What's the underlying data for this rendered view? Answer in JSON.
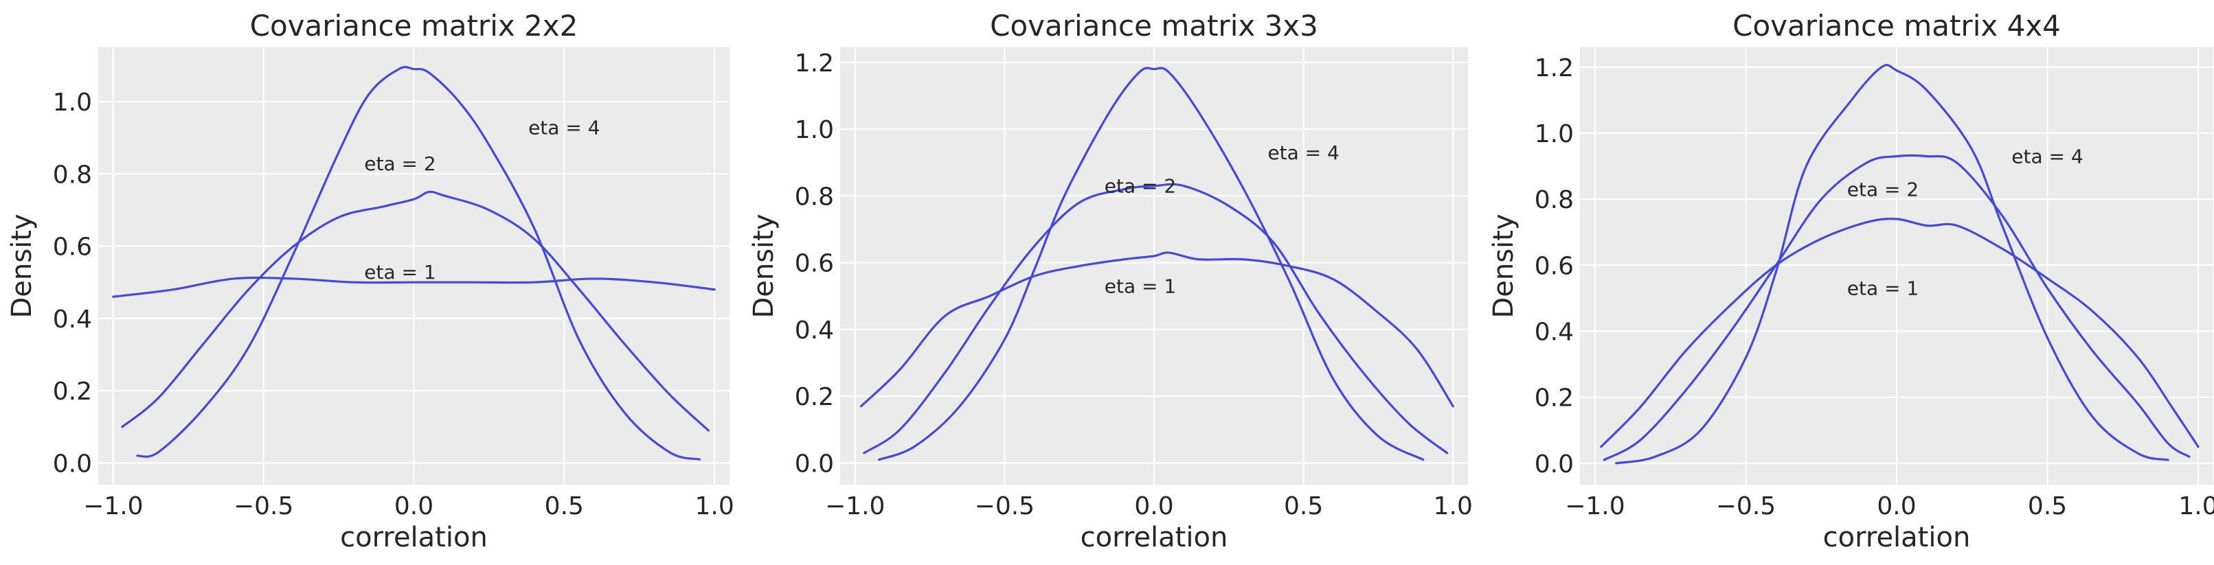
{
  "figure": {
    "line_color": "#4348e0",
    "plot_background": "#ebebeb",
    "grid_color": "#ffffff"
  },
  "chart_data": [
    {
      "type": "line",
      "title": "Covariance matrix 2x2",
      "xlabel": "correlation",
      "ylabel": "Density",
      "xlim": [
        -1.05,
        1.05
      ],
      "ylim": [
        -0.06,
        1.15
      ],
      "xticks": [
        -1.0,
        -0.5,
        0.0,
        0.5,
        1.0
      ],
      "xtick_labels": [
        "−1.0",
        "−0.5",
        "0.0",
        "0.5",
        "1.0"
      ],
      "yticks": [
        0.0,
        0.2,
        0.4,
        0.6,
        0.8,
        1.0
      ],
      "ytick_labels": [
        "0.0",
        "0.2",
        "0.4",
        "0.6",
        "0.8",
        "1.0"
      ],
      "grid": true,
      "annotations": [
        {
          "text": "eta = 4",
          "x": 0.5,
          "y": 0.91
        },
        {
          "text": "eta = 2",
          "x": 0.0,
          "y": 0.81
        },
        {
          "text": "eta = 1",
          "x": 0.0,
          "y": 0.51
        }
      ],
      "series": [
        {
          "x": [
            -1.0,
            -0.8,
            -0.6,
            -0.4,
            -0.2,
            0.0,
            0.2,
            0.4,
            0.6,
            0.8,
            1.0
          ],
          "y": [
            0.46,
            0.48,
            0.51,
            0.51,
            0.5,
            0.5,
            0.5,
            0.5,
            0.51,
            0.5,
            0.48
          ]
        },
        {
          "x": [
            -0.97,
            -0.85,
            -0.7,
            -0.55,
            -0.4,
            -0.25,
            -0.1,
            0.0,
            0.05,
            0.1,
            0.25,
            0.4,
            0.55,
            0.7,
            0.85,
            0.98
          ],
          "y": [
            0.1,
            0.18,
            0.33,
            0.48,
            0.6,
            0.68,
            0.71,
            0.73,
            0.75,
            0.74,
            0.7,
            0.62,
            0.48,
            0.33,
            0.19,
            0.09
          ]
        },
        {
          "x": [
            -0.92,
            -0.85,
            -0.7,
            -0.55,
            -0.4,
            -0.25,
            -0.15,
            -0.05,
            0.0,
            0.05,
            0.15,
            0.25,
            0.4,
            0.55,
            0.7,
            0.85,
            0.95
          ],
          "y": [
            0.02,
            0.03,
            0.15,
            0.32,
            0.58,
            0.86,
            1.02,
            1.09,
            1.09,
            1.08,
            1.0,
            0.88,
            0.65,
            0.34,
            0.14,
            0.03,
            0.01
          ]
        }
      ]
    },
    {
      "type": "line",
      "title": "Covariance matrix 3x3",
      "xlabel": "correlation",
      "ylabel": "Density",
      "xlim": [
        -1.05,
        1.05
      ],
      "ylim": [
        -0.065,
        1.245
      ],
      "xticks": [
        -1.0,
        -0.5,
        0.0,
        0.5,
        1.0
      ],
      "xtick_labels": [
        "−1.0",
        "−0.5",
        "0.0",
        "0.5",
        "1.0"
      ],
      "yticks": [
        0.0,
        0.2,
        0.4,
        0.6,
        0.8,
        1.0,
        1.2
      ],
      "ytick_labels": [
        "0.0",
        "0.2",
        "0.4",
        "0.6",
        "0.8",
        "1.0",
        "1.2"
      ],
      "grid": true,
      "annotations": [
        {
          "text": "eta = 4",
          "x": 0.5,
          "y": 0.91
        },
        {
          "text": "eta = 2",
          "x": 0.0,
          "y": 0.81
        },
        {
          "text": "eta = 1",
          "x": 0.0,
          "y": 0.51
        }
      ],
      "series": [
        {
          "x": [
            -0.98,
            -0.85,
            -0.7,
            -0.55,
            -0.4,
            -0.25,
            -0.1,
            0.0,
            0.05,
            0.15,
            0.3,
            0.45,
            0.6,
            0.75,
            0.88,
            1.0
          ],
          "y": [
            0.17,
            0.28,
            0.44,
            0.5,
            0.56,
            0.59,
            0.61,
            0.62,
            0.63,
            0.61,
            0.61,
            0.59,
            0.55,
            0.45,
            0.34,
            0.17
          ]
        },
        {
          "x": [
            -0.97,
            -0.85,
            -0.7,
            -0.55,
            -0.4,
            -0.25,
            -0.1,
            0.0,
            0.1,
            0.25,
            0.4,
            0.55,
            0.7,
            0.85,
            0.98
          ],
          "y": [
            0.03,
            0.1,
            0.27,
            0.47,
            0.65,
            0.78,
            0.82,
            0.83,
            0.83,
            0.77,
            0.66,
            0.45,
            0.27,
            0.12,
            0.03
          ]
        },
        {
          "x": [
            -0.92,
            -0.8,
            -0.65,
            -0.5,
            -0.4,
            -0.3,
            -0.15,
            -0.05,
            0.0,
            0.05,
            0.15,
            0.3,
            0.45,
            0.6,
            0.75,
            0.9
          ],
          "y": [
            0.01,
            0.05,
            0.17,
            0.37,
            0.58,
            0.8,
            1.05,
            1.17,
            1.18,
            1.17,
            1.05,
            0.82,
            0.55,
            0.25,
            0.08,
            0.01
          ]
        }
      ]
    },
    {
      "type": "line",
      "title": "Covariance matrix 4x4",
      "xlabel": "correlation",
      "ylabel": "Density",
      "xlim": [
        -1.05,
        1.05
      ],
      "ylim": [
        -0.065,
        1.26
      ],
      "xticks": [
        -1.0,
        -0.5,
        0.0,
        0.5,
        1.0
      ],
      "xtick_labels": [
        "−1.0",
        "−0.5",
        "0.0",
        "0.5",
        "1.0"
      ],
      "yticks": [
        0.0,
        0.2,
        0.4,
        0.6,
        0.8,
        1.0,
        1.2
      ],
      "ytick_labels": [
        "0.0",
        "0.2",
        "0.4",
        "0.6",
        "0.8",
        "1.0",
        "1.2"
      ],
      "grid": true,
      "annotations": [
        {
          "text": "eta = 4",
          "x": 0.5,
          "y": 0.91
        },
        {
          "text": "eta = 2",
          "x": 0.0,
          "y": 0.81
        },
        {
          "text": "eta = 1",
          "x": 0.0,
          "y": 0.51
        }
      ],
      "series": [
        {
          "x": [
            -0.98,
            -0.85,
            -0.7,
            -0.55,
            -0.4,
            -0.25,
            -0.1,
            0.0,
            0.1,
            0.2,
            0.35,
            0.5,
            0.65,
            0.8,
            0.92,
            1.0
          ],
          "y": [
            0.05,
            0.17,
            0.34,
            0.48,
            0.6,
            0.68,
            0.73,
            0.74,
            0.72,
            0.72,
            0.65,
            0.56,
            0.46,
            0.32,
            0.16,
            0.05
          ]
        },
        {
          "x": [
            -0.97,
            -0.85,
            -0.7,
            -0.55,
            -0.4,
            -0.25,
            -0.1,
            0.0,
            0.1,
            0.2,
            0.35,
            0.5,
            0.65,
            0.8,
            0.9,
            0.97
          ],
          "y": [
            0.01,
            0.07,
            0.22,
            0.4,
            0.6,
            0.8,
            0.91,
            0.93,
            0.93,
            0.91,
            0.75,
            0.53,
            0.34,
            0.18,
            0.06,
            0.02
          ]
        },
        {
          "x": [
            -0.93,
            -0.8,
            -0.65,
            -0.5,
            -0.4,
            -0.3,
            -0.15,
            -0.05,
            0.0,
            0.1,
            0.25,
            0.35,
            0.5,
            0.65,
            0.8,
            0.9
          ],
          "y": [
            0.0,
            0.02,
            0.1,
            0.32,
            0.58,
            0.9,
            1.1,
            1.2,
            1.19,
            1.13,
            0.95,
            0.72,
            0.38,
            0.14,
            0.03,
            0.01
          ]
        }
      ]
    }
  ]
}
